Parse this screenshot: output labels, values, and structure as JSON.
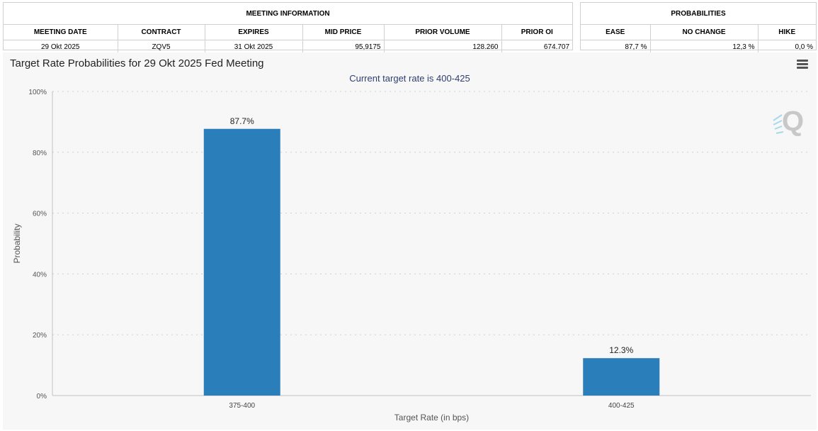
{
  "meeting_info": {
    "title": "MEETING INFORMATION",
    "columns": [
      "MEETING DATE",
      "CONTRACT",
      "EXPIRES",
      "MID PRICE",
      "PRIOR VOLUME",
      "PRIOR OI"
    ],
    "row": [
      "29 Okt 2025",
      "ZQV5",
      "31 Okt 2025",
      "95,9175",
      "128.260",
      "674.707"
    ]
  },
  "probabilities": {
    "title": "PROBABILITIES",
    "columns": [
      "EASE",
      "NO CHANGE",
      "HIKE"
    ],
    "row": [
      "87,7 %",
      "12,3 %",
      "0,0 %"
    ]
  },
  "icons": {
    "menu": "hamburger-menu-icon",
    "logo": "cme-q-logo-icon"
  },
  "colors": {
    "bar": "#2a7fba",
    "axis_label": "#555555",
    "subtitle": "#2e3e70"
  },
  "chart_data": {
    "type": "bar",
    "title": "Target Rate Probabilities for 29 Okt 2025 Fed Meeting",
    "subtitle": "Current target rate is 400-425",
    "xlabel": "Target Rate (in bps)",
    "ylabel": "Probability",
    "categories": [
      "375-400",
      "400-425"
    ],
    "values": [
      87.7,
      12.3
    ],
    "data_labels": [
      "87.7%",
      "12.3%"
    ],
    "ylim": [
      0,
      100
    ],
    "yticks": [
      0,
      20,
      40,
      60,
      80,
      100
    ],
    "ytick_labels": [
      "0%",
      "20%",
      "40%",
      "60%",
      "80%",
      "100%"
    ],
    "grid": true
  }
}
